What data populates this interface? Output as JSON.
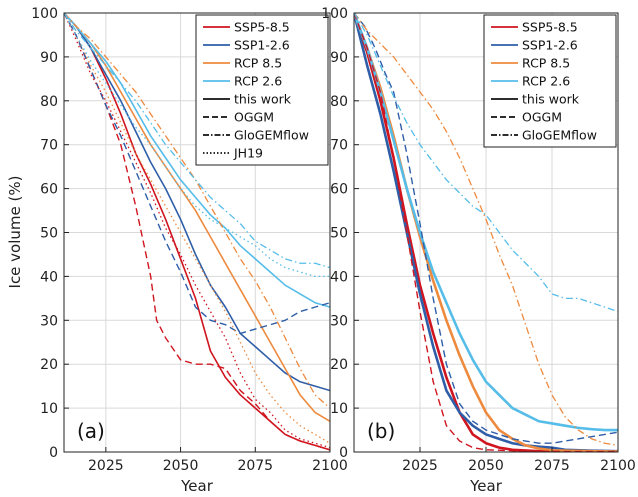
{
  "chart_data": [
    {
      "type": "line",
      "panel_label": "(a)",
      "xlabel": "Year",
      "ylabel": "Ice volume (%)",
      "xlim": [
        2011,
        2100
      ],
      "ylim": [
        0,
        100
      ],
      "xticks": [
        2025,
        2050,
        2075,
        2100
      ],
      "yticks": [
        0,
        10,
        20,
        30,
        40,
        50,
        60,
        70,
        80,
        90,
        100
      ],
      "grid": true,
      "legend_position": "top-right",
      "legend": [
        {
          "label": "SSP5-8.5",
          "color": "#d0151f",
          "dash": "solid"
        },
        {
          "label": "SSP1-2.6",
          "color": "#2f5ea8",
          "dash": "solid"
        },
        {
          "label": "RCP 8.5",
          "color": "#ee8a3e",
          "dash": "solid"
        },
        {
          "label": "RCP 2.6",
          "color": "#56bde9",
          "dash": "solid"
        },
        {
          "label": "this work",
          "color": "#111111",
          "dash": "solid"
        },
        {
          "label": "OGGM",
          "color": "#111111",
          "dash": "dashed"
        },
        {
          "label": "GloGEMflow",
          "color": "#111111",
          "dash": "dashdot"
        },
        {
          "label": "JH19",
          "color": "#111111",
          "dash": "dotted"
        }
      ],
      "series": [
        {
          "scenario": "SSP5-8.5",
          "model": "this work",
          "color": "#d0151f",
          "dash": "solid",
          "width": 1.6,
          "x": [
            2011,
            2015,
            2020,
            2025,
            2030,
            2035,
            2040,
            2045,
            2050,
            2055,
            2060,
            2065,
            2070,
            2075,
            2080,
            2085,
            2090,
            2095,
            2100
          ],
          "y": [
            100,
            97,
            92,
            85,
            77,
            68,
            61,
            53,
            44,
            35,
            23,
            17,
            13,
            10,
            7,
            4,
            2.5,
            1.5,
            0.5
          ]
        },
        {
          "scenario": "SSP1-2.6",
          "model": "this work",
          "color": "#2f5ea8",
          "dash": "solid",
          "width": 1.6,
          "x": [
            2011,
            2015,
            2020,
            2025,
            2030,
            2035,
            2040,
            2045,
            2050,
            2055,
            2060,
            2065,
            2070,
            2075,
            2080,
            2085,
            2090,
            2095,
            2100
          ],
          "y": [
            100,
            97,
            92,
            86,
            80,
            73,
            66,
            60,
            53,
            45,
            38,
            33,
            27,
            24,
            21,
            18,
            16,
            15,
            14
          ]
        },
        {
          "scenario": "RCP 8.5",
          "model": "this work",
          "color": "#ee8a3e",
          "dash": "solid",
          "width": 1.6,
          "x": [
            2011,
            2015,
            2020,
            2025,
            2030,
            2035,
            2040,
            2045,
            2050,
            2055,
            2060,
            2065,
            2070,
            2075,
            2080,
            2085,
            2090,
            2095,
            2100
          ],
          "y": [
            100,
            97,
            93,
            88,
            82,
            76,
            70,
            65,
            60,
            55,
            49,
            43,
            37,
            31,
            25,
            19,
            13,
            9,
            7
          ]
        },
        {
          "scenario": "RCP 2.6",
          "model": "this work",
          "color": "#56bde9",
          "dash": "solid",
          "width": 1.6,
          "x": [
            2011,
            2015,
            2020,
            2025,
            2030,
            2035,
            2040,
            2045,
            2050,
            2055,
            2060,
            2065,
            2070,
            2075,
            2080,
            2085,
            2090,
            2095,
            2100
          ],
          "y": [
            100,
            97,
            93,
            89,
            84,
            78,
            72,
            67,
            62,
            58,
            54,
            51,
            47,
            44,
            41,
            38,
            36,
            34,
            33
          ]
        },
        {
          "scenario": "SSP5-8.5",
          "model": "OGGM",
          "color": "#d0151f",
          "dash": "dashed",
          "width": 1.4,
          "x": [
            2011,
            2015,
            2020,
            2025,
            2030,
            2035,
            2040,
            2042,
            2045,
            2050,
            2055,
            2060,
            2065,
            2070,
            2075,
            2080,
            2085,
            2090,
            2095,
            2100
          ],
          "y": [
            100,
            95,
            87,
            79,
            70,
            56,
            40,
            30,
            26,
            21,
            20,
            20,
            19,
            14,
            11,
            7,
            4,
            2.5,
            1.5,
            0.5
          ]
        },
        {
          "scenario": "SSP1-2.6",
          "model": "OGGM",
          "color": "#2f5ea8",
          "dash": "dashed",
          "width": 1.4,
          "x": [
            2011,
            2015,
            2020,
            2025,
            2030,
            2035,
            2040,
            2045,
            2050,
            2055,
            2060,
            2065,
            2070,
            2075,
            2080,
            2085,
            2090,
            2095,
            2100
          ],
          "y": [
            100,
            95,
            87,
            79,
            72,
            64,
            56,
            48,
            41,
            33,
            30,
            29,
            27,
            28,
            29,
            30,
            32,
            33,
            34
          ]
        },
        {
          "scenario": "SSP5-8.5",
          "model": "JH19",
          "color": "#d0151f",
          "dash": "dotted",
          "width": 1.3,
          "x": [
            2011,
            2015,
            2020,
            2025,
            2030,
            2035,
            2040,
            2045,
            2050,
            2055,
            2060,
            2065,
            2070,
            2075,
            2080,
            2085,
            2090,
            2095,
            2100
          ],
          "y": [
            100,
            94,
            86,
            80,
            73,
            66,
            59,
            51,
            45,
            38,
            32,
            26,
            18,
            12,
            9,
            5,
            3,
            2,
            1
          ]
        },
        {
          "scenario": "RCP 8.5",
          "model": "JH19",
          "color": "#ee8a3e",
          "dash": "dotted",
          "width": 1.3,
          "x": [
            2011,
            2015,
            2020,
            2025,
            2030,
            2035,
            2040,
            2045,
            2050,
            2055,
            2060,
            2065,
            2070,
            2075,
            2080,
            2085,
            2090,
            2095,
            2100
          ],
          "y": [
            100,
            95,
            88,
            82,
            75,
            68,
            62,
            56,
            50,
            44,
            38,
            32,
            25,
            18,
            13,
            9,
            6,
            4,
            2
          ]
        },
        {
          "scenario": "RCP 2.6",
          "model": "JH19",
          "color": "#56bde9",
          "dash": "dotted",
          "width": 1.3,
          "x": [
            2011,
            2015,
            2020,
            2025,
            2030,
            2035,
            2040,
            2045,
            2050,
            2055,
            2060,
            2065,
            2070,
            2075,
            2080,
            2085,
            2090,
            2095,
            2100
          ],
          "y": [
            100,
            95,
            89,
            84,
            79,
            74,
            70,
            65,
            60,
            56,
            53,
            51,
            49,
            47,
            44,
            42,
            41,
            40,
            40
          ]
        },
        {
          "scenario": "RCP 8.5",
          "model": "GloGEMflow",
          "color": "#ee8a3e",
          "dash": "dashdot",
          "width": 1.3,
          "x": [
            2011,
            2015,
            2020,
            2025,
            2030,
            2035,
            2040,
            2045,
            2050,
            2055,
            2060,
            2065,
            2070,
            2075,
            2080,
            2085,
            2090,
            2095,
            2100
          ],
          "y": [
            100,
            97,
            94,
            90,
            86,
            82,
            77,
            72,
            67,
            62,
            56,
            50,
            44,
            39,
            33,
            26,
            19,
            13,
            10
          ]
        },
        {
          "scenario": "RCP 2.6",
          "model": "GloGEMflow",
          "color": "#56bde9",
          "dash": "dashdot",
          "width": 1.3,
          "x": [
            2011,
            2015,
            2020,
            2025,
            2030,
            2035,
            2040,
            2045,
            2050,
            2055,
            2060,
            2065,
            2070,
            2075,
            2080,
            2085,
            2090,
            2095,
            2100
          ],
          "y": [
            100,
            96,
            92,
            88,
            84,
            80,
            75,
            70,
            66,
            62,
            58,
            55,
            52,
            48,
            46,
            44,
            43,
            43,
            42
          ]
        }
      ]
    },
    {
      "type": "line",
      "panel_label": "(b)",
      "xlabel": "Year",
      "ylabel": "",
      "xlim": [
        2000,
        2100
      ],
      "ylim": [
        0,
        100
      ],
      "xticks": [
        2025,
        2050,
        2075,
        2100
      ],
      "yticks": [
        0,
        10,
        20,
        30,
        40,
        50,
        60,
        70,
        80,
        90,
        100
      ],
      "grid": true,
      "legend_position": "top-right",
      "legend": [
        {
          "label": "SSP5-8.5",
          "color": "#d0151f",
          "dash": "solid"
        },
        {
          "label": "SSP1-2.6",
          "color": "#2f5ea8",
          "dash": "solid"
        },
        {
          "label": "RCP 8.5",
          "color": "#ee8a3e",
          "dash": "solid"
        },
        {
          "label": "RCP 2.6",
          "color": "#56bde9",
          "dash": "solid"
        },
        {
          "label": "this work",
          "color": "#111111",
          "dash": "solid"
        },
        {
          "label": "OGGM",
          "color": "#111111",
          "dash": "dashed"
        },
        {
          "label": "GloGEMflow",
          "color": "#111111",
          "dash": "dashdot"
        }
      ],
      "series": [
        {
          "scenario": "SSP5-8.5",
          "model": "this work",
          "color": "#d0151f",
          "dash": "solid",
          "width": 2.6,
          "x": [
            2000,
            2005,
            2010,
            2015,
            2020,
            2025,
            2030,
            2035,
            2040,
            2045,
            2050,
            2055,
            2060,
            2070,
            2080,
            2090,
            2100
          ],
          "y": [
            100,
            91,
            80,
            67,
            52,
            38,
            27,
            17,
            9,
            4,
            2,
            1,
            0.5,
            0.2,
            0.1,
            0.1,
            0.1
          ]
        },
        {
          "scenario": "SSP1-2.6",
          "model": "this work",
          "color": "#2f5ea8",
          "dash": "solid",
          "width": 2.6,
          "x": [
            2000,
            2005,
            2010,
            2015,
            2020,
            2025,
            2030,
            2035,
            2040,
            2045,
            2050,
            2055,
            2060,
            2065,
            2070,
            2075,
            2080,
            2090,
            2100
          ],
          "y": [
            100,
            88,
            77,
            64,
            50,
            36,
            24,
            14,
            9,
            6,
            4,
            3,
            2,
            1.5,
            1.2,
            1,
            0.5,
            0.3,
            0.2
          ]
        },
        {
          "scenario": "RCP 8.5",
          "model": "this work",
          "color": "#ee8a3e",
          "dash": "solid",
          "width": 2.6,
          "x": [
            2000,
            2005,
            2010,
            2015,
            2020,
            2025,
            2030,
            2035,
            2040,
            2045,
            2050,
            2055,
            2060,
            2065,
            2070,
            2075,
            2080,
            2090,
            2100
          ],
          "y": [
            100,
            92,
            83,
            72,
            60,
            49,
            39,
            30,
            22,
            15,
            9,
            5,
            3,
            1.5,
            0.8,
            0.4,
            0.3,
            0.2,
            0.1
          ]
        },
        {
          "scenario": "RCP 2.6",
          "model": "this work",
          "color": "#56bde9",
          "dash": "solid",
          "width": 2.6,
          "x": [
            2000,
            2005,
            2010,
            2015,
            2020,
            2025,
            2030,
            2035,
            2040,
            2045,
            2050,
            2055,
            2060,
            2065,
            2070,
            2075,
            2080,
            2085,
            2090,
            2095,
            2100
          ],
          "y": [
            100,
            92,
            82,
            71,
            60,
            50,
            41,
            34,
            27,
            21,
            16,
            13,
            10,
            8.5,
            7,
            6.5,
            6,
            5.5,
            5.2,
            5,
            5
          ]
        },
        {
          "scenario": "SSP5-8.5",
          "model": "OGGM",
          "color": "#d0151f",
          "dash": "dashed",
          "width": 1.4,
          "x": [
            2000,
            2005,
            2010,
            2015,
            2020,
            2025,
            2030,
            2035,
            2040,
            2045,
            2050,
            2060,
            2070,
            2080,
            2090,
            2100
          ],
          "y": [
            100,
            92,
            82,
            67,
            50,
            32,
            16,
            6,
            2.5,
            1,
            0.5,
            0.3,
            0.2,
            0.1,
            0.1,
            0.1
          ]
        },
        {
          "scenario": "SSP1-2.6",
          "model": "OGGM",
          "color": "#2f5ea8",
          "dash": "dashed",
          "width": 1.4,
          "x": [
            2000,
            2004,
            2008,
            2012,
            2015,
            2020,
            2025,
            2030,
            2035,
            2040,
            2045,
            2050,
            2055,
            2060,
            2065,
            2070,
            2075,
            2080,
            2085,
            2090,
            2095,
            2100
          ],
          "y": [
            100,
            97,
            92,
            86,
            82,
            68,
            52,
            35,
            20,
            11,
            7,
            5,
            4,
            3,
            2.5,
            2,
            2,
            2.5,
            3,
            3.5,
            4,
            4.5
          ]
        },
        {
          "scenario": "RCP 8.5",
          "model": "GloGEMflow",
          "color": "#ee8a3e",
          "dash": "dashdot",
          "width": 1.3,
          "x": [
            2000,
            2005,
            2010,
            2015,
            2020,
            2025,
            2030,
            2035,
            2040,
            2045,
            2050,
            2055,
            2060,
            2065,
            2070,
            2075,
            2080,
            2085,
            2090,
            2095,
            2100
          ],
          "y": [
            100,
            96,
            93,
            90,
            86,
            82,
            78,
            73,
            67,
            60,
            53,
            45,
            38,
            29,
            20,
            13,
            8,
            5,
            3,
            2,
            1.5
          ]
        },
        {
          "scenario": "RCP 2.6",
          "model": "GloGEMflow",
          "color": "#56bde9",
          "dash": "dashdot",
          "width": 1.3,
          "x": [
            2000,
            2005,
            2010,
            2015,
            2020,
            2025,
            2030,
            2035,
            2040,
            2045,
            2050,
            2055,
            2060,
            2065,
            2070,
            2075,
            2080,
            2085,
            2090,
            2095,
            2100
          ],
          "y": [
            100,
            95,
            88,
            81,
            75,
            70,
            66,
            62,
            59,
            56,
            54,
            50,
            46,
            43,
            40,
            36,
            35,
            35,
            34,
            33,
            32
          ]
        }
      ]
    }
  ]
}
